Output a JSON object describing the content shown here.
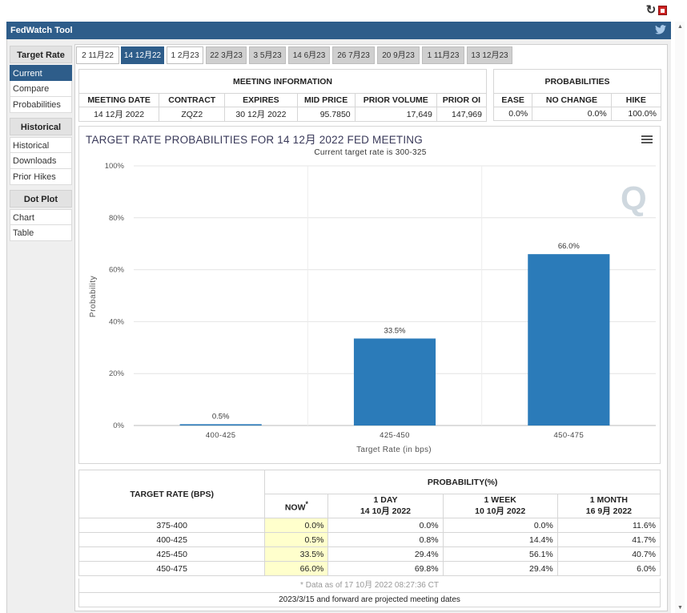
{
  "app": {
    "title": "FedWatch Tool"
  },
  "sidebar": {
    "groups": [
      {
        "heading": "Target Rate",
        "items": [
          "Current",
          "Compare",
          "Probabilities"
        ]
      },
      {
        "heading": "Historical",
        "items": [
          "Historical",
          "Downloads",
          "Prior Hikes"
        ]
      },
      {
        "heading": "Dot Plot",
        "items": [
          "Chart",
          "Table"
        ]
      }
    ],
    "active_item": "Current"
  },
  "tabs": [
    {
      "label": "2 11月22",
      "state": "white"
    },
    {
      "label": "14 12月22",
      "state": "active"
    },
    {
      "label": "1 2月23",
      "state": "white"
    },
    {
      "label": "22 3月23",
      "state": "inactive"
    },
    {
      "label": "3 5月23",
      "state": "inactive"
    },
    {
      "label": "14 6月23",
      "state": "inactive"
    },
    {
      "label": "26 7月23",
      "state": "inactive"
    },
    {
      "label": "20 9月23",
      "state": "inactive"
    },
    {
      "label": "1 11月23",
      "state": "inactive"
    },
    {
      "label": "13 12月23",
      "state": "inactive"
    }
  ],
  "meeting_info": {
    "caption": "MEETING INFORMATION",
    "headers": [
      "MEETING DATE",
      "CONTRACT",
      "EXPIRES",
      "MID PRICE",
      "PRIOR VOLUME",
      "PRIOR OI"
    ],
    "row": [
      "14 12月 2022",
      "ZQZ2",
      "30 12月 2022",
      "95.7850",
      "17,649",
      "147,969"
    ]
  },
  "probabilities": {
    "caption": "PROBABILITIES",
    "headers": [
      "EASE",
      "NO CHANGE",
      "HIKE"
    ],
    "row": [
      "0.0%",
      "0.0%",
      "100.0%"
    ]
  },
  "chart_data": {
    "type": "bar",
    "title": "TARGET RATE PROBABILITIES FOR 14 12月 2022 FED MEETING",
    "subtitle": "Current target rate is 300-325",
    "xlabel": "Target Rate (in bps)",
    "ylabel": "Probability",
    "categories": [
      "400-425",
      "425-450",
      "450-475"
    ],
    "values": [
      0.5,
      33.5,
      66.0
    ],
    "data_labels": [
      "0.5%",
      "33.5%",
      "66.0%"
    ],
    "ylim": [
      0,
      100
    ],
    "y_ticks": [
      "0%",
      "20%",
      "40%",
      "60%",
      "80%",
      "100%"
    ],
    "bar_color": "#2b7bb9",
    "grid": true
  },
  "rate_table": {
    "left_header": "TARGET RATE (BPS)",
    "group_header": "PROBABILITY(%)",
    "col_headers": [
      {
        "line1": "NOW",
        "line2": ""
      },
      {
        "line1": "1 DAY",
        "line2": "14 10月 2022"
      },
      {
        "line1": "1 WEEK",
        "line2": "10 10月 2022"
      },
      {
        "line1": "1 MONTH",
        "line2": "16 9月 2022"
      }
    ],
    "now_marker": "*",
    "rows": [
      {
        "rate": "375-400",
        "now": "0.0%",
        "day": "0.0%",
        "week": "0.0%",
        "month": "11.6%"
      },
      {
        "rate": "400-425",
        "now": "0.5%",
        "day": "0.8%",
        "week": "14.4%",
        "month": "41.7%"
      },
      {
        "rate": "425-450",
        "now": "33.5%",
        "day": "29.4%",
        "week": "56.1%",
        "month": "40.7%"
      },
      {
        "rate": "450-475",
        "now": "66.0%",
        "day": "69.8%",
        "week": "29.4%",
        "month": "6.0%"
      }
    ],
    "note": "* Data as of 17 10月 2022 08:27:36 CT",
    "footer": "2023/3/15 and forward are projected meeting dates"
  },
  "colors": {
    "brand": "#2e5d8a",
    "now_highlight": "#ffffcc"
  }
}
